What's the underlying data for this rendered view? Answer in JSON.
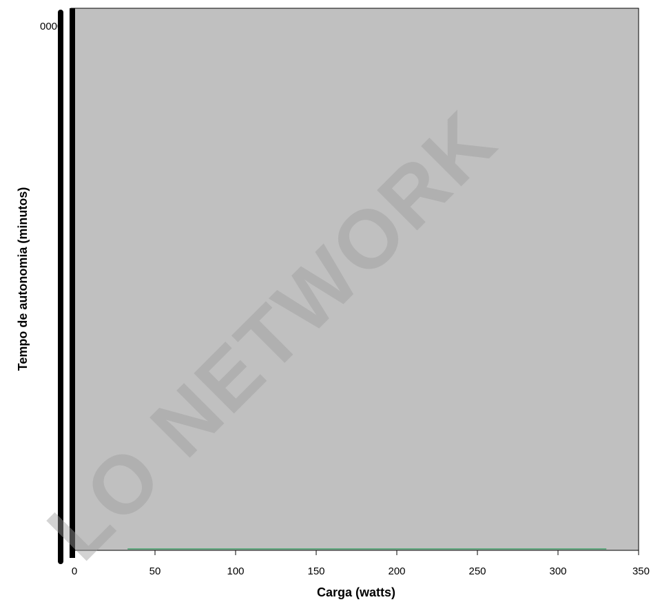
{
  "chart_data": {
    "type": "line",
    "title": "",
    "xlabel": "Carga (watts)",
    "ylabel": "Tempo de autonomia (minutos)",
    "xlim": [
      0,
      350
    ],
    "x_ticks": [
      0,
      50,
      100,
      150,
      200,
      250,
      300,
      350
    ],
    "y_tick_labels_overlapping": "0000",
    "grid": false,
    "legend": "none",
    "plot_background": "#c0c0c0",
    "series": [
      {
        "color": "#5fa87e",
        "x": [
          33,
          330
        ],
        "y": [
          0,
          0
        ]
      }
    ]
  },
  "watermark": {
    "text": "LO NETWORK"
  }
}
